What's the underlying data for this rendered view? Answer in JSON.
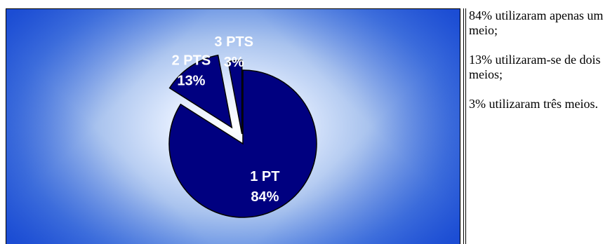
{
  "chart_data": {
    "type": "pie",
    "categories": [
      "1 PT",
      "2 PTS",
      "3 PTS"
    ],
    "values": [
      84,
      13,
      3
    ],
    "value_labels": [
      "84%",
      "13%",
      "3%"
    ],
    "exploded": [
      false,
      true,
      true
    ],
    "title": "",
    "colors": {
      "slice_fill": "#000080",
      "slice_stroke": "#000000",
      "label": "#ffffff"
    }
  },
  "notes": [
    "84% utilizaram apenas um meio;",
    "13% utilizaram-se de dois meios;",
    "3% utilizaram três meios."
  ]
}
